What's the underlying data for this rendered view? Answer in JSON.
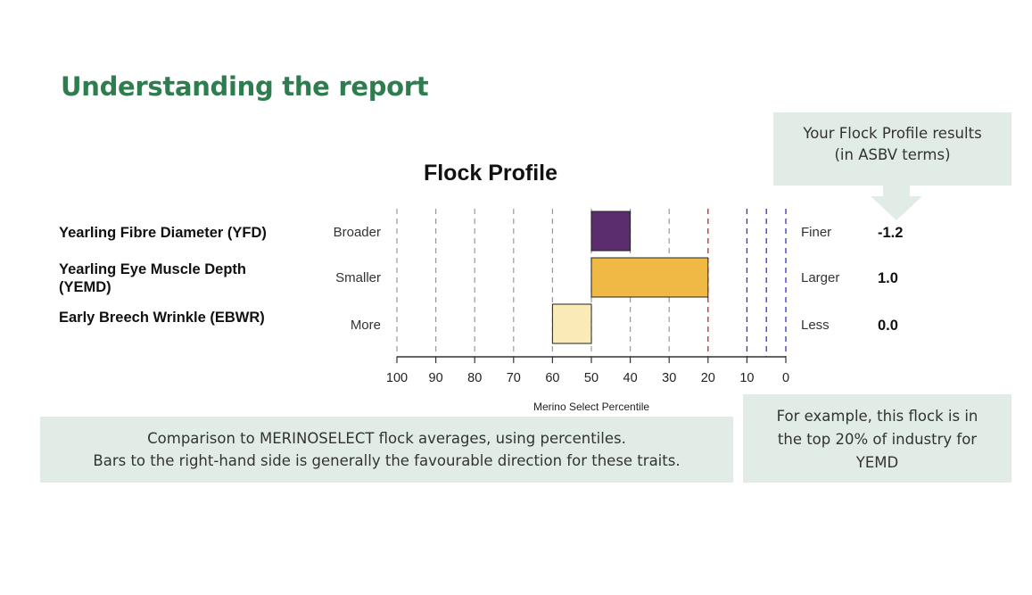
{
  "page": {
    "title": "Understanding the report"
  },
  "callouts": {
    "results_line1": "Your Flock Profile results",
    "results_line2": "(in ASBV terms)",
    "comparison_line1": "Comparison to MERINOSELECT flock averages, using percentiles.",
    "comparison_line2": "Bars to the right-hand side is generally the favourable direction for these traits.",
    "example_line1": "For example, this flock is in",
    "example_line2": "the top 20% of industry for",
    "example_line3": "YEMD"
  },
  "colors": {
    "title_green": "#2e7d4f",
    "callout_bg": "#e2ece6",
    "bar_yfd": "#5c2d6e",
    "bar_yemd": "#f0b943",
    "bar_ebwr": "#faeab8",
    "line_20": "#cc2222",
    "line_top": "#3333cc"
  },
  "chart_data": {
    "type": "bar",
    "orientation": "horizontal",
    "title": "Flock Profile",
    "xlabel": "Merino Select Percentile",
    "xlim": [
      100,
      0
    ],
    "x_ticks": [
      "100",
      "90",
      "80",
      "70",
      "60",
      "50",
      "40",
      "30",
      "20",
      "10",
      "0"
    ],
    "red_dashed_line": 20,
    "blue_dashed_lines": [
      10,
      5,
      0
    ],
    "baseline": 50,
    "traits": [
      {
        "label_line1": "Yearling Fibre Diameter (YFD)",
        "label_line2": "",
        "low": "Broader",
        "high": "Finer",
        "value": "-1.2",
        "bar_from": 50,
        "bar_to": 40,
        "color": "#5c2d6e"
      },
      {
        "label_line1": "Yearling Eye Muscle Depth",
        "label_line2": "(YEMD)",
        "low": "Smaller",
        "high": "Larger",
        "value": "1.0",
        "bar_from": 50,
        "bar_to": 20,
        "color": "#f0b943"
      },
      {
        "label_line1": "Early Breech Wrinkle (EBWR)",
        "label_line2": "",
        "low": "More",
        "high": "Less",
        "value": "0.0",
        "bar_from": 60,
        "bar_to": 50,
        "color": "#faeab8"
      }
    ]
  }
}
